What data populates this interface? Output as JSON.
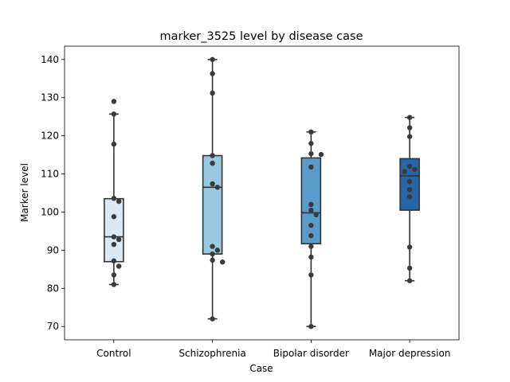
{
  "chart_data": {
    "type": "box",
    "title": "marker_3525 level by disease case",
    "xlabel": "Case",
    "ylabel": "Marker level",
    "ylim": [
      66.5,
      143.5
    ],
    "yticks": [
      70,
      80,
      90,
      100,
      110,
      120,
      130,
      140
    ],
    "grid": false,
    "legend": "none",
    "categories": [
      "Control",
      "Schizophrenia",
      "Bipolar disorder",
      "Major depression"
    ],
    "colors": [
      "#dbe9f6",
      "#9ac8e0",
      "#5a9cc9",
      "#2565a8"
    ],
    "boxes": [
      {
        "whisker_low": 81,
        "q1": 87,
        "median": 93.5,
        "q3": 103.5,
        "whisker_high": 125.7,
        "outliers": [
          129
        ]
      },
      {
        "whisker_low": 72,
        "q1": 89,
        "median": 106.5,
        "q3": 114.8,
        "whisker_high": 140,
        "outliers": []
      },
      {
        "whisker_low": 70,
        "q1": 91.7,
        "median": 99.8,
        "q3": 114.2,
        "whisker_high": 121,
        "outliers": []
      },
      {
        "whisker_low": 82,
        "q1": 100.5,
        "median": 109.5,
        "q3": 114,
        "whisker_high": 124.8,
        "outliers": []
      }
    ],
    "points": [
      [
        129,
        125.7,
        117.8,
        103.6,
        102.8,
        98.8,
        93.5,
        92.8,
        91.5,
        87.2,
        85.8,
        83.5,
        81
      ],
      [
        140,
        136.3,
        131.2,
        114.8,
        112.8,
        107.4,
        106.5,
        91,
        90,
        89,
        87.4,
        86.9,
        72
      ],
      [
        121,
        118,
        115.3,
        115.1,
        111.8,
        102,
        100.5,
        99.3,
        96.5,
        93.8,
        91,
        88.2,
        83.5,
        70
      ],
      [
        124.8,
        122.1,
        119.8,
        112,
        111.2,
        110.6,
        108,
        105.9,
        104,
        90.8,
        85.3,
        82
      ]
    ]
  }
}
